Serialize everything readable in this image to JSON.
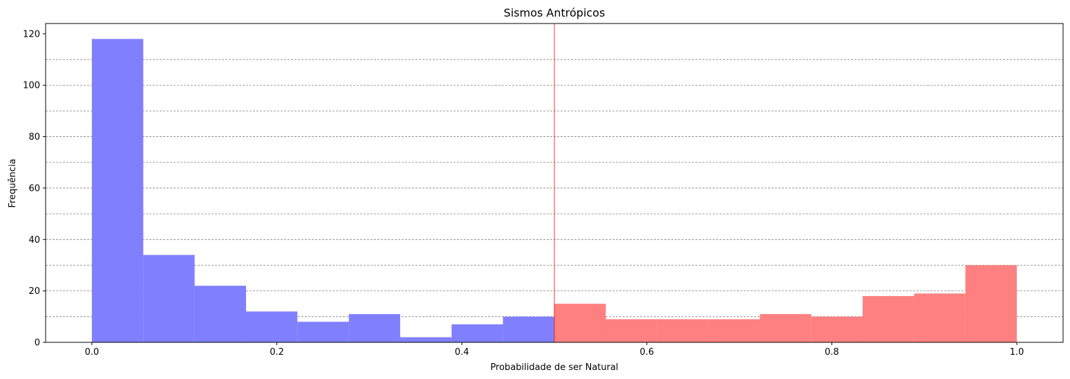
{
  "chart_data": {
    "type": "bar",
    "title": "Sismos Antrópicos",
    "xlabel": "Probabilidade de ser Natural",
    "ylabel": "Frequência",
    "xlim": [
      -0.05,
      1.05
    ],
    "ylim": [
      0,
      124
    ],
    "xticks": [
      0.0,
      0.2,
      0.4,
      0.6,
      0.8,
      1.0
    ],
    "xtick_labels": [
      "0.0",
      "0.2",
      "0.4",
      "0.6",
      "0.8",
      "1.0"
    ],
    "yticks": [
      0,
      20,
      40,
      60,
      80,
      100,
      120
    ],
    "ytick_labels": [
      "0",
      "20",
      "40",
      "60",
      "80",
      "100",
      "120"
    ],
    "grid": "horizontal dashed gray lines",
    "grid_y": [
      10,
      20,
      30,
      40,
      50,
      60,
      70,
      80,
      90,
      100,
      110
    ],
    "threshold_x": 0.5,
    "threshold_color": "#ff0000",
    "series": [
      {
        "color": "#8080ff",
        "bin_edges": [
          0.0,
          0.0556,
          0.1111,
          0.1667,
          0.2222,
          0.2778,
          0.3333,
          0.3889,
          0.4444,
          0.5
        ],
        "values": [
          118,
          34,
          22,
          12,
          8,
          11,
          2,
          7,
          10
        ]
      },
      {
        "color": "#ff8080",
        "bin_edges": [
          0.5,
          0.5556,
          0.6111,
          0.6667,
          0.7222,
          0.7778,
          0.8333,
          0.8889,
          0.9444,
          1.0
        ],
        "values": [
          15,
          9,
          9,
          9,
          11,
          10,
          18,
          19,
          30
        ]
      }
    ]
  }
}
